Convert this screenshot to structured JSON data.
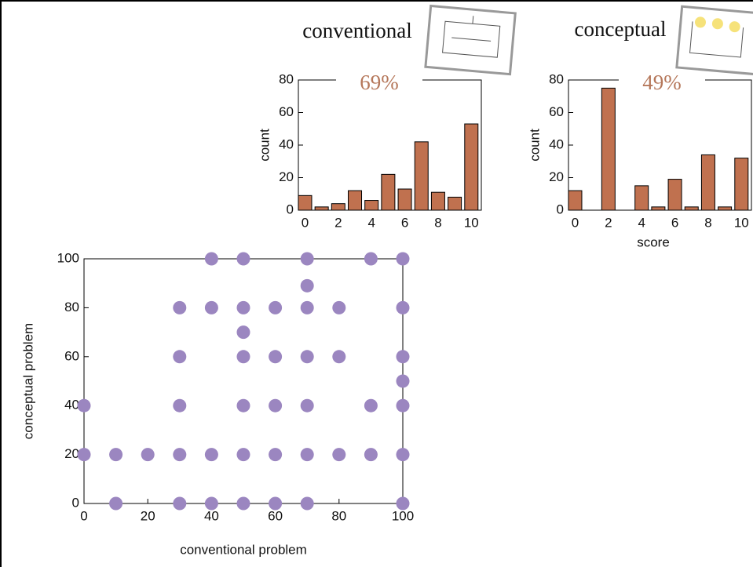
{
  "chart_data": [
    {
      "type": "bar",
      "title": "conventional",
      "annotation": "69%",
      "ylabel": "count",
      "x": [
        0,
        1,
        2,
        3,
        4,
        5,
        6,
        7,
        8,
        9,
        10
      ],
      "values": [
        9,
        2,
        4,
        12,
        6,
        22,
        13,
        42,
        11,
        8,
        53
      ],
      "color": "#c0714f",
      "xlim": [
        -0.4,
        10.6
      ],
      "ylim": [
        0,
        80
      ],
      "xticks": [
        0,
        2,
        4,
        6,
        8,
        10
      ],
      "yticks": [
        0,
        20,
        40,
        60,
        80
      ]
    },
    {
      "type": "bar",
      "title": "conceptual",
      "annotation": "49%",
      "ylabel": "count",
      "xlabel": "score",
      "x": [
        0,
        1,
        2,
        3,
        4,
        5,
        6,
        7,
        8,
        9,
        10
      ],
      "values": [
        12,
        0,
        75,
        0,
        15,
        2,
        19,
        2,
        34,
        2,
        32
      ],
      "color": "#c0714f",
      "xlim": [
        -0.4,
        10.6
      ],
      "ylim": [
        0,
        80
      ],
      "xticks": [
        0,
        2,
        4,
        6,
        8,
        10
      ],
      "yticks": [
        0,
        20,
        40,
        60,
        80
      ]
    },
    {
      "type": "scatter",
      "xlabel": "conventional problem",
      "ylabel": "conceptual problem",
      "x": [
        40,
        50,
        70,
        90,
        100,
        70,
        30,
        40,
        50,
        60,
        70,
        80,
        100,
        50,
        30,
        50,
        60,
        70,
        80,
        100,
        100,
        0,
        30,
        50,
        60,
        70,
        90,
        100,
        0,
        10,
        20,
        30,
        40,
        50,
        60,
        70,
        80,
        90,
        100,
        10,
        30,
        40,
        50,
        60,
        70,
        100
      ],
      "values": [
        100,
        100,
        100,
        100,
        100,
        89,
        80,
        80,
        80,
        80,
        80,
        80,
        80,
        70,
        60,
        60,
        60,
        60,
        60,
        60,
        50,
        40,
        40,
        40,
        40,
        40,
        40,
        40,
        20,
        20,
        20,
        20,
        20,
        20,
        20,
        20,
        20,
        20,
        20,
        0,
        0,
        0,
        0,
        0,
        0,
        0
      ],
      "color": "#9b86c0",
      "xlim": [
        0,
        100
      ],
      "ylim": [
        0,
        100
      ],
      "xticks": [
        0,
        20,
        40,
        60,
        80,
        100
      ],
      "yticks": [
        0,
        20,
        40,
        60,
        80,
        100
      ]
    }
  ]
}
